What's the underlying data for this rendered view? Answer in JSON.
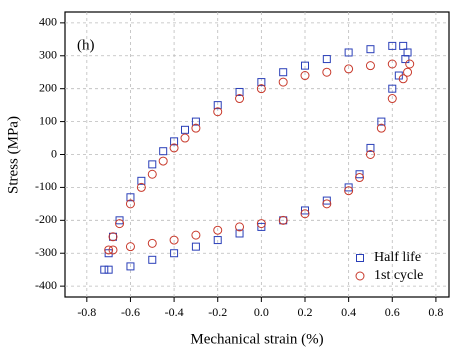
{
  "chart_data": {
    "type": "scatter",
    "annotation": "(h)",
    "xlabel": "Mechanical strain (%)",
    "ylabel": "Stress (MPa)",
    "xlim": [
      -0.9,
      0.86
    ],
    "ylim": [
      -433,
      433
    ],
    "xticks": [
      -0.8,
      -0.6,
      -0.4,
      -0.2,
      {
        "value": 0,
        "label": "0.0"
      },
      0.2,
      0.4,
      0.6,
      0.8
    ],
    "yticks": [
      -400,
      -300,
      -200,
      -100,
      0,
      100,
      200,
      300,
      400
    ],
    "grid": true,
    "legend": "lower right",
    "series": [
      {
        "name": "Half life",
        "color": "#2a3fb8",
        "marker": "square",
        "x": [
          -0.72,
          -0.7,
          -0.68,
          -0.65,
          -0.6,
          -0.55,
          -0.5,
          -0.45,
          -0.4,
          -0.35,
          -0.3,
          -0.2,
          -0.1,
          0,
          0.1,
          0.2,
          0.3,
          0.4,
          0.5,
          0.6,
          0.65,
          0.67,
          0.66,
          0.63,
          0.6,
          0.55,
          0.5,
          0.45,
          0.4,
          0.3,
          0.2,
          0.1,
          0,
          -0.1,
          -0.2,
          -0.3,
          -0.4,
          -0.5,
          -0.6,
          -0.7
        ],
        "values": [
          -350,
          -300,
          -250,
          -200,
          -130,
          -80,
          -30,
          10,
          40,
          75,
          100,
          150,
          190,
          220,
          250,
          270,
          290,
          310,
          320,
          330,
          330,
          310,
          290,
          240,
          200,
          100,
          20,
          -60,
          -100,
          -140,
          -170,
          -200,
          -220,
          -240,
          -260,
          -280,
          -300,
          -320,
          -340,
          -350
        ]
      },
      {
        "name": "1st cycle",
        "color": "#c8392b",
        "marker": "circle",
        "x": [
          -0.7,
          -0.68,
          -0.65,
          -0.6,
          -0.55,
          -0.5,
          -0.45,
          -0.4,
          -0.35,
          -0.3,
          -0.2,
          -0.1,
          0,
          0.1,
          0.2,
          0.3,
          0.4,
          0.5,
          0.6,
          0.68,
          0.67,
          0.65,
          0.6,
          0.55,
          0.5,
          0.45,
          0.4,
          0.3,
          0.2,
          0.1,
          0,
          -0.1,
          -0.2,
          -0.3,
          -0.4,
          -0.5,
          -0.6,
          -0.68
        ],
        "values": [
          -290,
          -250,
          -210,
          -150,
          -100,
          -60,
          -20,
          20,
          50,
          80,
          130,
          170,
          200,
          220,
          240,
          250,
          260,
          270,
          275,
          275,
          250,
          230,
          170,
          80,
          0,
          -70,
          -110,
          -150,
          -180,
          -200,
          -210,
          -220,
          -230,
          -245,
          -260,
          -270,
          -280,
          -290
        ]
      }
    ]
  }
}
